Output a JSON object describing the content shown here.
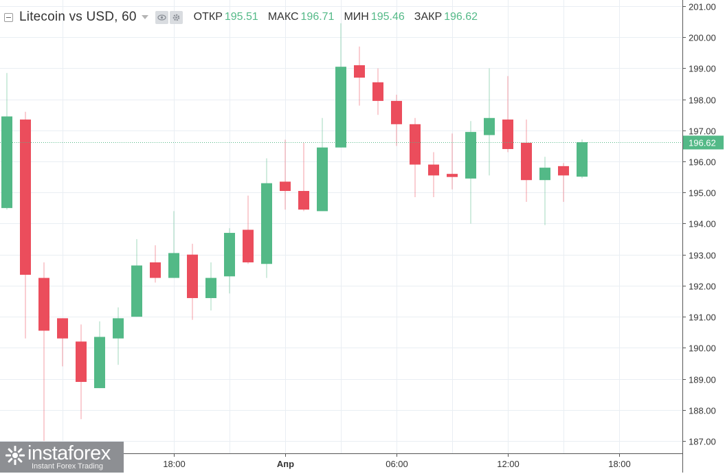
{
  "legend": {
    "symbol": "Litecoin vs USD, 60",
    "open_label": "ОТКР",
    "open_value": "195.51",
    "high_label": "МАКС",
    "high_value": "196.71",
    "low_label": "МИН",
    "low_value": "195.46",
    "close_label": "ЗАКР",
    "close_value": "196.62"
  },
  "watermark": {
    "brand": "instaforex",
    "tagline": "Instant Forex Trading"
  },
  "colors": {
    "up": "#53b987",
    "down": "#eb4d5c",
    "grid": "#e9eef3",
    "axis_line": "#555555",
    "last_price_line": "#53b987"
  },
  "chart_data": {
    "type": "candlestick",
    "title": "Litecoin vs USD, 60",
    "ylim": [
      186.6,
      201.2
    ],
    "y_ticks": [
      "201.00",
      "200.00",
      "199.00",
      "198.00",
      "197.00",
      "196.00",
      "195.00",
      "194.00",
      "193.00",
      "192.00",
      "191.00",
      "190.00",
      "189.00",
      "188.00",
      "187.00"
    ],
    "x_ticks": [
      {
        "label": "18:00",
        "index": 9,
        "bold": false
      },
      {
        "label": "Апр",
        "index": 15,
        "bold": true
      },
      {
        "label": "06:00",
        "index": 21,
        "bold": false
      },
      {
        "label": "12:00",
        "index": 27,
        "bold": false
      },
      {
        "label": "18:00",
        "index": 33,
        "bold": false
      }
    ],
    "x_count": 37,
    "last_price": "196.62",
    "candles": [
      {
        "o": 194.5,
        "h": 198.85,
        "l": 194.45,
        "c": 197.45
      },
      {
        "o": 197.35,
        "h": 197.6,
        "l": 190.3,
        "c": 192.35
      },
      {
        "o": 192.25,
        "h": 192.75,
        "l": 187.0,
        "c": 190.55
      },
      {
        "o": 190.95,
        "h": 190.95,
        "l": 189.4,
        "c": 190.3
      },
      {
        "o": 190.2,
        "h": 190.75,
        "l": 187.7,
        "c": 188.9
      },
      {
        "o": 188.7,
        "h": 190.85,
        "l": 188.7,
        "c": 190.35
      },
      {
        "o": 190.3,
        "h": 191.3,
        "l": 189.45,
        "c": 190.95
      },
      {
        "o": 191.0,
        "h": 193.5,
        "l": 191.0,
        "c": 192.65
      },
      {
        "o": 192.75,
        "h": 193.3,
        "l": 192.1,
        "c": 192.25
      },
      {
        "o": 192.25,
        "h": 194.4,
        "l": 192.25,
        "c": 193.05
      },
      {
        "o": 193.0,
        "h": 193.35,
        "l": 190.9,
        "c": 191.6
      },
      {
        "o": 191.6,
        "h": 192.75,
        "l": 191.2,
        "c": 192.25
      },
      {
        "o": 192.3,
        "h": 193.85,
        "l": 191.75,
        "c": 193.7
      },
      {
        "o": 193.8,
        "h": 194.9,
        "l": 192.7,
        "c": 192.75
      },
      {
        "o": 192.7,
        "h": 196.1,
        "l": 192.25,
        "c": 195.3
      },
      {
        "o": 195.35,
        "h": 196.7,
        "l": 194.45,
        "c": 195.05
      },
      {
        "o": 195.05,
        "h": 196.6,
        "l": 194.4,
        "c": 194.45
      },
      {
        "o": 194.4,
        "h": 197.4,
        "l": 194.4,
        "c": 196.45
      },
      {
        "o": 196.45,
        "h": 200.45,
        "l": 196.45,
        "c": 199.05
      },
      {
        "o": 199.1,
        "h": 199.7,
        "l": 197.8,
        "c": 198.7
      },
      {
        "o": 198.55,
        "h": 199.0,
        "l": 197.5,
        "c": 197.95
      },
      {
        "o": 197.95,
        "h": 198.15,
        "l": 196.5,
        "c": 197.2
      },
      {
        "o": 197.2,
        "h": 197.4,
        "l": 194.85,
        "c": 195.9
      },
      {
        "o": 195.9,
        "h": 196.3,
        "l": 194.85,
        "c": 195.55
      },
      {
        "o": 195.6,
        "h": 196.9,
        "l": 195.1,
        "c": 195.5
      },
      {
        "o": 195.45,
        "h": 197.3,
        "l": 194.0,
        "c": 196.95
      },
      {
        "o": 196.85,
        "h": 199.0,
        "l": 195.55,
        "c": 197.4
      },
      {
        "o": 197.35,
        "h": 198.75,
        "l": 196.3,
        "c": 196.4
      },
      {
        "o": 196.6,
        "h": 197.35,
        "l": 194.7,
        "c": 195.4
      },
      {
        "o": 195.4,
        "h": 196.15,
        "l": 193.95,
        "c": 195.8
      },
      {
        "o": 195.85,
        "h": 195.95,
        "l": 194.7,
        "c": 195.55
      },
      {
        "o": 195.51,
        "h": 196.71,
        "l": 195.46,
        "c": 196.62
      }
    ]
  }
}
